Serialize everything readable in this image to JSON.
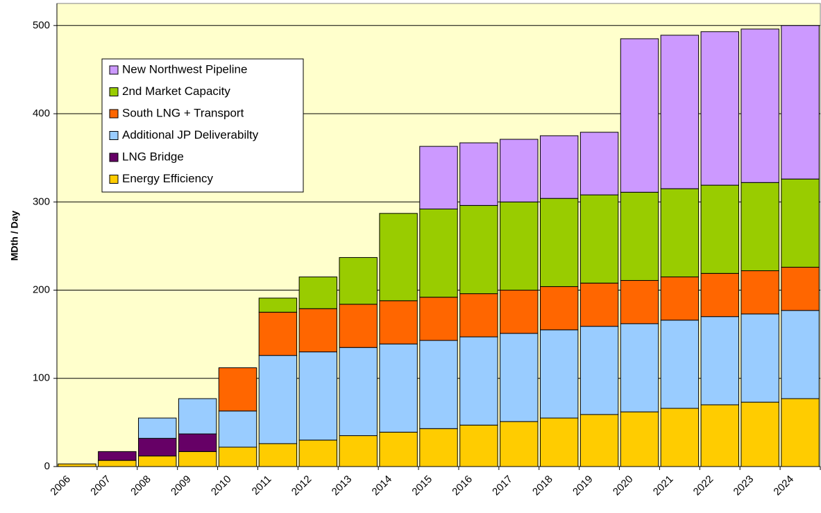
{
  "chart_data": {
    "type": "stacked-bar",
    "y_label": "MDth / Day",
    "categories": [
      "2006",
      "2007",
      "2008",
      "2009",
      "2010",
      "2011",
      "2012",
      "2013",
      "2014",
      "2015",
      "2016",
      "2017",
      "2018",
      "2019",
      "2020",
      "2021",
      "2022",
      "2023",
      "2024"
    ],
    "series": [
      {
        "name": "Energy Efficiency",
        "color": "#ffcc00",
        "values": [
          3,
          7,
          12,
          17,
          22,
          26,
          30,
          35,
          39,
          43,
          47,
          51,
          55,
          59,
          62,
          66,
          70,
          73,
          77
        ]
      },
      {
        "name": "LNG Bridge",
        "color": "#660066",
        "values": [
          0,
          10,
          20,
          20,
          0,
          0,
          0,
          0,
          0,
          0,
          0,
          0,
          0,
          0,
          0,
          0,
          0,
          0,
          0
        ]
      },
      {
        "name": "Additional JP Deliverabilty",
        "color": "#99ccff",
        "values": [
          0,
          0,
          23,
          40,
          41,
          100,
          100,
          100,
          100,
          100,
          100,
          100,
          100,
          100,
          100,
          100,
          100,
          100,
          100
        ]
      },
      {
        "name": "South LNG + Transport",
        "color": "#ff6600",
        "values": [
          0,
          0,
          0,
          0,
          49,
          49,
          49,
          49,
          49,
          49,
          49,
          49,
          49,
          49,
          49,
          49,
          49,
          49,
          49
        ]
      },
      {
        "name": "2nd Market Capacity",
        "color": "#99cc00",
        "values": [
          0,
          0,
          0,
          0,
          0,
          16,
          36,
          53,
          99,
          100,
          100,
          100,
          100,
          100,
          100,
          100,
          100,
          100,
          100
        ]
      },
      {
        "name": "New Northwest Pipeline",
        "color": "#cc99ff",
        "values": [
          0,
          0,
          0,
          0,
          0,
          0,
          0,
          0,
          0,
          71,
          71,
          71,
          71,
          71,
          174,
          174,
          174,
          174,
          174
        ]
      }
    ],
    "ylim": [
      0,
      525
    ],
    "yticks": [
      0,
      100,
      200,
      300,
      400,
      500
    ],
    "grid": true,
    "legend": "upper left",
    "background": "#ffffcc"
  }
}
